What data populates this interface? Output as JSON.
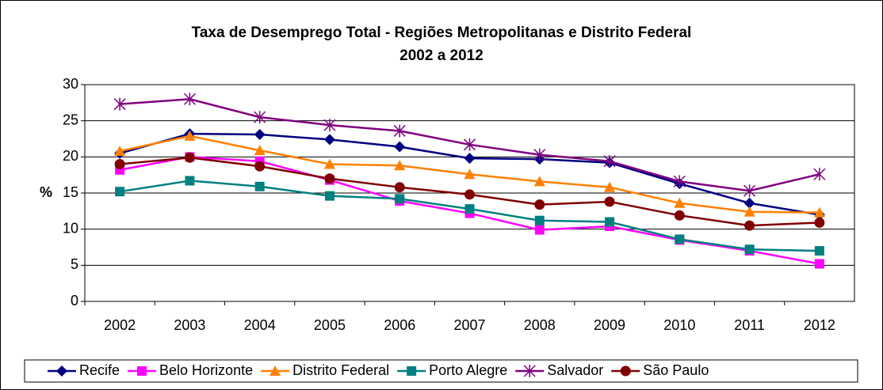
{
  "chart_data": {
    "type": "line",
    "title": "Taxa de Desemprego Total - Regiões Metropolitanas e Distrito Federal",
    "subtitle": "2002 a 2012",
    "y_label": "%",
    "categories": [
      "2002",
      "2003",
      "2004",
      "2005",
      "2006",
      "2007",
      "2008",
      "2009",
      "2010",
      "2011",
      "2012"
    ],
    "series": [
      {
        "name": "Recife",
        "color": "#000080",
        "marker": "diamond",
        "values": [
          20.5,
          23.2,
          23.1,
          22.4,
          21.4,
          19.8,
          19.7,
          19.2,
          16.3,
          13.6,
          12.0
        ]
      },
      {
        "name": "Belo Horizonte",
        "color": "#ff00ff",
        "marker": "square",
        "values": [
          18.2,
          20.0,
          19.4,
          16.8,
          13.9,
          12.2,
          9.9,
          10.4,
          8.5,
          7.0,
          5.2
        ]
      },
      {
        "name": "Distrito Federal",
        "color": "#ff8000",
        "marker": "triangle",
        "values": [
          20.8,
          22.9,
          20.9,
          19.0,
          18.8,
          17.6,
          16.6,
          15.8,
          13.6,
          12.4,
          12.3
        ]
      },
      {
        "name": "Porto Alegre",
        "color": "#008080",
        "marker": "square",
        "values": [
          15.2,
          16.7,
          15.9,
          14.6,
          14.2,
          12.8,
          11.2,
          11.0,
          8.6,
          7.2,
          7.0
        ]
      },
      {
        "name": "Salvador",
        "color": "#800080",
        "marker": "asterisk",
        "values": [
          27.3,
          28.0,
          25.5,
          24.4,
          23.6,
          21.7,
          20.3,
          19.4,
          16.6,
          15.3,
          17.6
        ]
      },
      {
        "name": "São Paulo",
        "color": "#800000",
        "marker": "circle",
        "values": [
          19.0,
          19.9,
          18.7,
          17.0,
          15.8,
          14.8,
          13.4,
          13.8,
          11.9,
          10.5,
          10.9
        ]
      }
    ],
    "ylim": [
      0,
      30
    ],
    "yticks": [
      0,
      5,
      10,
      15,
      20,
      25,
      30
    ],
    "grid": true,
    "legend": "bottom"
  }
}
